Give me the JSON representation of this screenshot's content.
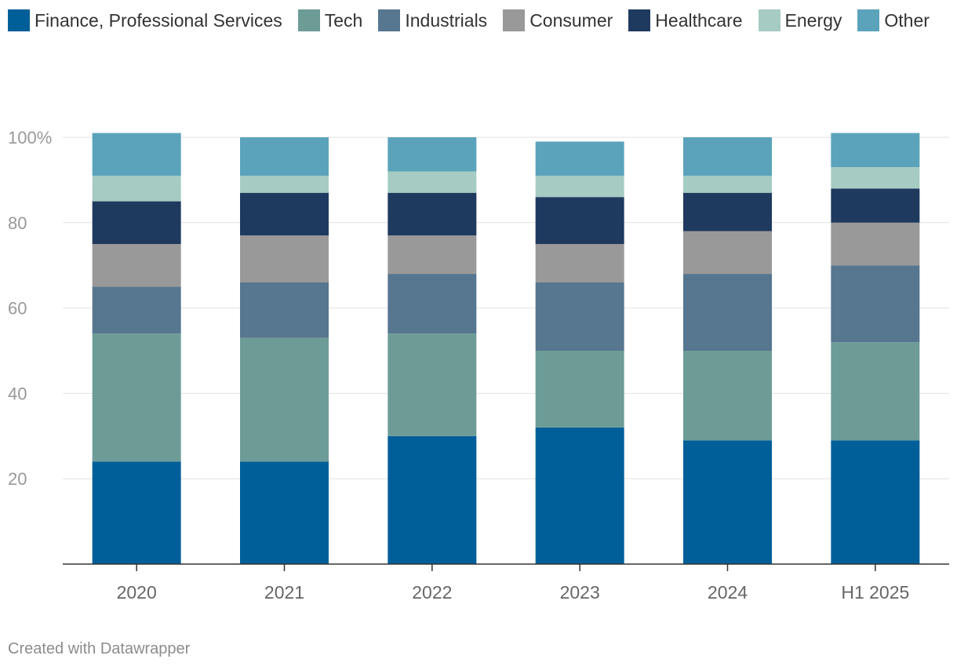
{
  "chart_data": {
    "type": "bar",
    "stacked": true,
    "categories": [
      "2020",
      "2021",
      "2022",
      "2023",
      "2024",
      "H1 2025"
    ],
    "y_ticks": [
      20,
      40,
      60,
      80,
      100
    ],
    "y_tick_labels": [
      "20",
      "40",
      "60",
      "80",
      "100%"
    ],
    "ylim": [
      0,
      100
    ],
    "legend_position": "top",
    "series": [
      {
        "name": "Finance, Professional Services",
        "color": "#005f99",
        "values": [
          24,
          24,
          30,
          32,
          29,
          29
        ]
      },
      {
        "name": "Tech",
        "color": "#6d9c97",
        "values": [
          30,
          29,
          24,
          18,
          21,
          23
        ]
      },
      {
        "name": "Industrials",
        "color": "#57768f",
        "values": [
          11,
          13,
          14,
          16,
          18,
          18
        ]
      },
      {
        "name": "Consumer",
        "color": "#999999",
        "values": [
          10,
          11,
          9,
          9,
          10,
          10
        ]
      },
      {
        "name": "Healthcare",
        "color": "#1f3a5f",
        "values": [
          10,
          10,
          10,
          11,
          9,
          8
        ]
      },
      {
        "name": "Energy",
        "color": "#a6cbc3",
        "values": [
          6,
          4,
          5,
          5,
          4,
          5
        ]
      },
      {
        "name": "Other",
        "color": "#5ba3bb",
        "values": [
          10,
          9,
          8,
          8,
          9,
          8
        ]
      }
    ]
  },
  "footer": {
    "credit": "Created with Datawrapper"
  }
}
